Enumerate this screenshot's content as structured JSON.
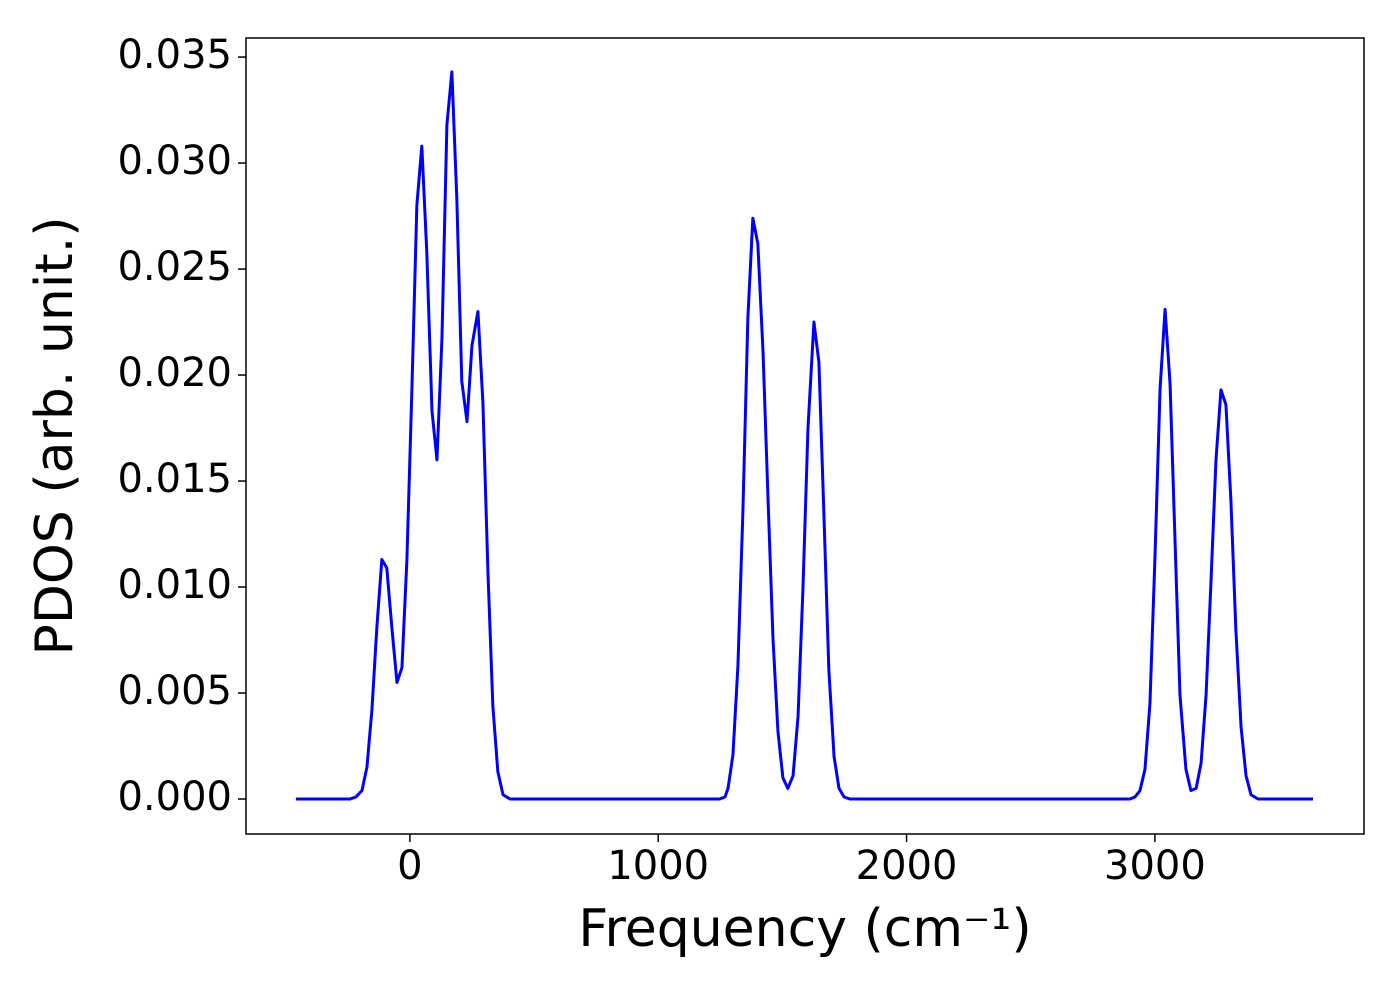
{
  "chart_data": {
    "type": "line",
    "x_label": "Frequency (cm⁻¹)",
    "y_label": "PDOS (arb. unit.)",
    "series": [
      {
        "color": "#0000ff",
        "x": [
          -459,
          -242,
          -217,
          -193,
          -173,
          -153,
          -133,
          -113,
          -93,
          -72,
          -52,
          -32,
          -12,
          8,
          28,
          48,
          68,
          89,
          109,
          129,
          149,
          169,
          189,
          209,
          230,
          250,
          274,
          294,
          314,
          334,
          354,
          375,
          403,
          1248,
          1269,
          1281,
          1301,
          1321,
          1341,
          1361,
          1381,
          1401,
          1422,
          1442,
          1462,
          1482,
          1502,
          1522,
          1543,
          1563,
          1583,
          1603,
          1627,
          1647,
          1667,
          1687,
          1708,
          1728,
          1748,
          1772,
          2900,
          2920,
          2940,
          2960,
          2980,
          3000,
          3021,
          3041,
          3061,
          3081,
          3101,
          3125,
          3145,
          3166,
          3186,
          3206,
          3226,
          3246,
          3266,
          3286,
          3306,
          3326,
          3347,
          3367,
          3387,
          3415,
          3637
        ],
        "values": [
          0,
          0,
          0.0001,
          0.0004,
          0.0015,
          0.0042,
          0.0081,
          0.0113,
          0.0109,
          0.008,
          0.0055,
          0.0062,
          0.0113,
          0.0193,
          0.028,
          0.0308,
          0.0258,
          0.0183,
          0.016,
          0.0217,
          0.0318,
          0.0343,
          0.0283,
          0.0197,
          0.0178,
          0.0214,
          0.023,
          0.0187,
          0.0108,
          0.0044,
          0.0013,
          0.0002,
          0,
          0,
          0.0001,
          0.0005,
          0.0021,
          0.0063,
          0.0136,
          0.0227,
          0.0274,
          0.0262,
          0.0211,
          0.0142,
          0.0076,
          0.0032,
          0.001,
          0.0005,
          0.0011,
          0.0039,
          0.01,
          0.0175,
          0.0225,
          0.0206,
          0.0135,
          0.0061,
          0.002,
          0.0005,
          0.0001,
          0,
          0,
          0.0001,
          0.0004,
          0.0014,
          0.0045,
          0.0113,
          0.0194,
          0.0231,
          0.0196,
          0.0122,
          0.0049,
          0.0014,
          0.0004,
          0.0005,
          0.0017,
          0.0049,
          0.0103,
          0.016,
          0.0193,
          0.0186,
          0.0141,
          0.008,
          0.0034,
          0.0011,
          0.0002,
          0,
          0
        ]
      }
    ],
    "xlim": [
      -660,
      3842
    ],
    "ylim": [
      -0.00165,
      0.0359
    ],
    "xticks": [
      0,
      1000,
      2000,
      3000
    ],
    "yticks": [
      {
        "value": 0,
        "label": "0.000"
      },
      {
        "value": 0.005,
        "label": "0.005"
      },
      {
        "value": 0.01,
        "label": "0.010"
      },
      {
        "value": 0.015,
        "label": "0.015"
      },
      {
        "value": 0.02,
        "label": "0.020"
      },
      {
        "value": 0.025,
        "label": "0.025"
      },
      {
        "value": 0.03,
        "label": "0.030"
      },
      {
        "value": 0.035,
        "label": "0.035"
      }
    ],
    "grid": false
  }
}
